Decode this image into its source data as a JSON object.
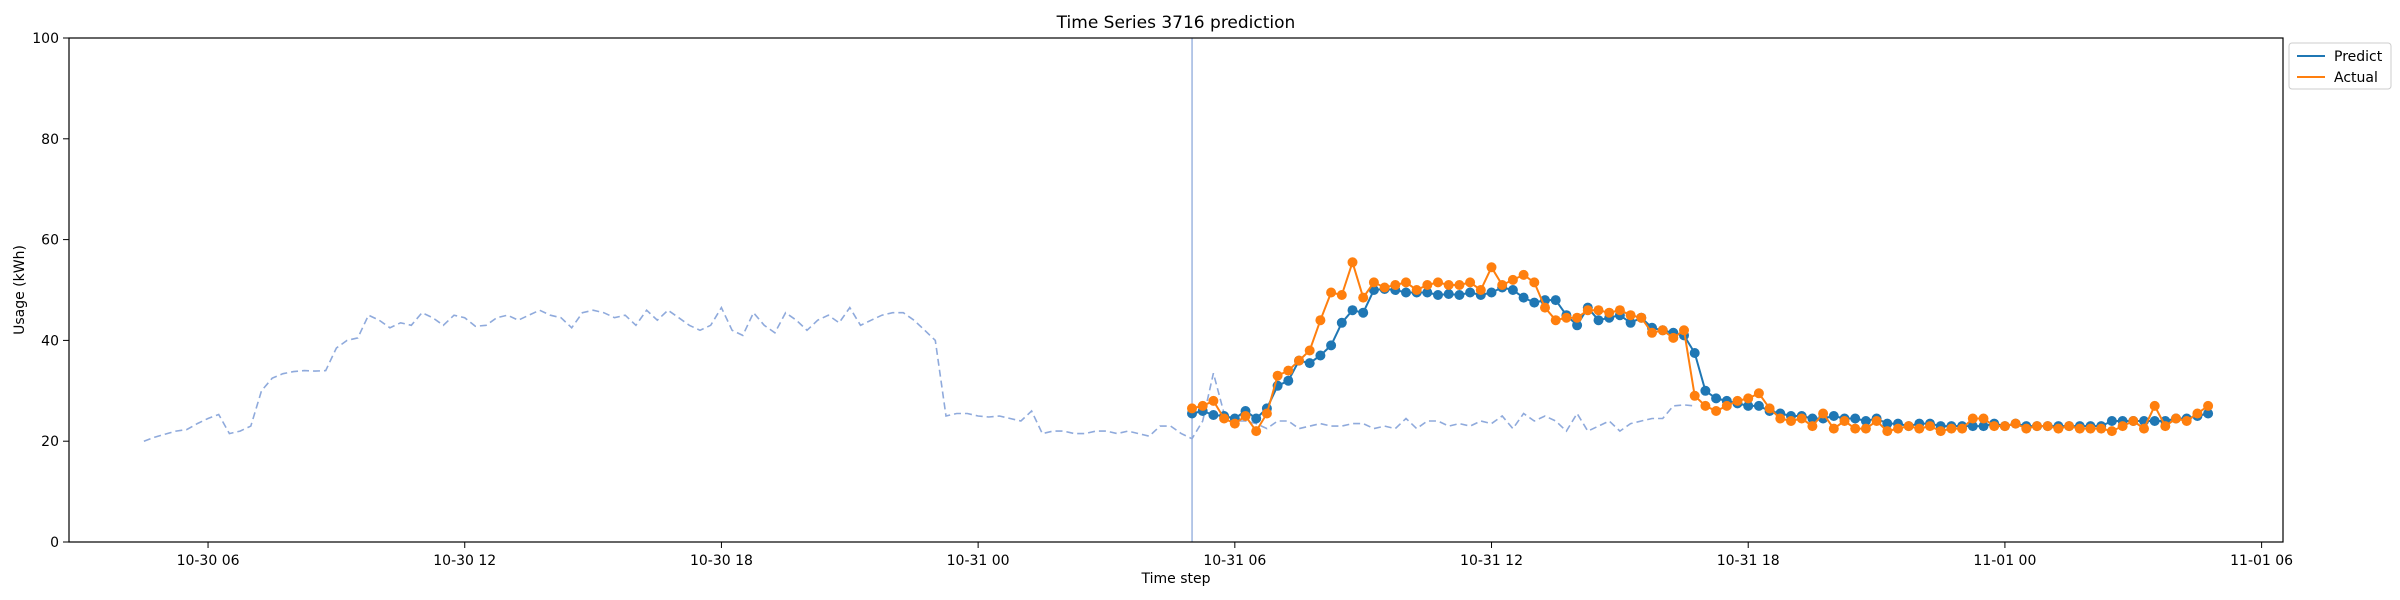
{
  "chart_data": {
    "type": "line",
    "title": "Time Series 3716 prediction",
    "xlabel": "Time step",
    "ylabel": "Usage (kWh)",
    "ylim": [
      0,
      100
    ],
    "yticks": [
      0,
      20,
      40,
      60,
      80,
      100
    ],
    "x_axis": "time",
    "x_start": "2016-10-30 04:30",
    "x_step_minutes": 15,
    "xlim": [
      "2016-10-30 02:45",
      "2016-11-01 06:30"
    ],
    "xticks": [
      {
        "t": "2016-10-30 06:00",
        "label": "10-30 06"
      },
      {
        "t": "2016-10-30 12:00",
        "label": "10-30 12"
      },
      {
        "t": "2016-10-30 18:00",
        "label": "10-30 18"
      },
      {
        "t": "2016-10-31 00:00",
        "label": "10-31 00"
      },
      {
        "t": "2016-10-31 06:00",
        "label": "10-31 06"
      },
      {
        "t": "2016-10-31 12:00",
        "label": "10-31 12"
      },
      {
        "t": "2016-10-31 18:00",
        "label": "10-31 18"
      },
      {
        "t": "2016-11-01 00:00",
        "label": "11-01 00"
      },
      {
        "t": "2016-11-01 06:00",
        "label": "11-01 06"
      }
    ],
    "forecast_start": "2016-10-31 05:00",
    "grid": false,
    "legend_position": "outside-top-right",
    "history": {
      "style": "dashed",
      "color": "#8faadc",
      "start": "2016-10-30 04:30",
      "values": [
        20.0,
        20.8,
        21.4,
        22.0,
        22.3,
        23.5,
        24.5,
        25.3,
        21.5,
        22.0,
        23.0,
        30.0,
        32.5,
        33.4,
        33.8,
        34.0,
        33.9,
        34.0,
        38.5,
        40.0,
        40.5,
        45.0,
        44.0,
        42.5,
        43.5,
        43.0,
        45.5,
        44.5,
        43.0,
        45.0,
        44.5,
        42.8,
        43.0,
        44.5,
        45.0,
        44.0,
        45.0,
        46.0,
        45.0,
        44.5,
        42.5,
        45.5,
        46.0,
        45.5,
        44.5,
        45.0,
        43.0,
        46.0,
        44.0,
        46.0,
        44.5,
        43.0,
        42.0,
        43.0,
        46.5,
        42.0,
        41.0,
        45.5,
        43.0,
        41.5,
        45.5,
        44.0,
        42.0,
        44.0,
        45.0,
        43.5,
        46.5,
        43.0,
        44.0,
        45.0,
        45.5,
        45.5,
        44.0,
        42.0,
        40.0,
        25.0,
        25.5,
        25.5,
        25.0,
        24.8,
        25.0,
        24.5,
        24.0,
        26.0,
        21.5,
        22.0,
        22.0,
        21.5,
        21.5,
        22.0,
        22.0,
        21.5,
        22.0,
        21.5,
        21.0,
        23.0,
        23.0,
        21.5,
        20.5,
        24.0,
        33.5,
        25.5,
        24.0,
        24.0,
        23.5,
        22.5,
        24.0,
        24.0,
        22.5,
        23.0,
        23.5,
        23.0,
        23.0,
        23.5,
        23.5,
        22.5,
        23.0,
        22.5,
        24.5,
        22.5,
        24.0,
        24.0,
        23.0,
        23.5,
        23.0,
        24.0,
        23.5,
        25.0,
        22.5,
        25.5,
        24.0,
        25.0,
        24.0,
        22.0,
        25.5,
        22.0,
        23.0,
        24.0,
        22.0,
        23.5,
        24.0,
        24.5,
        24.5,
        27.0,
        27.2,
        27.0
      ]
    },
    "series": [
      {
        "name": "Predict",
        "color": "#1f77b4",
        "start": "2016-10-31 05:00",
        "values": [
          25.5,
          26.0,
          25.2,
          25.0,
          24.5,
          26.0,
          24.5,
          26.5,
          31.0,
          32.0,
          36.0,
          35.5,
          37.0,
          39.0,
          43.5,
          46.0,
          45.5,
          50.0,
          50.2,
          50.0,
          49.5,
          49.5,
          49.5,
          49.0,
          49.2,
          49.0,
          49.5,
          49.0,
          49.5,
          50.5,
          50.0,
          48.5,
          47.5,
          48.0,
          48.0,
          45.0,
          43.0,
          46.5,
          44.0,
          44.5,
          45.0,
          43.5,
          44.5,
          42.5,
          42.0,
          41.5,
          41.0,
          37.5,
          30.0,
          28.5,
          28.0,
          27.5,
          27.0,
          27.0,
          26.0,
          25.5,
          25.0,
          25.0,
          24.5,
          24.5,
          25.0,
          24.5,
          24.5,
          24.0,
          24.5,
          23.5,
          23.5,
          23.0,
          23.5,
          23.5,
          23.0,
          23.0,
          23.0,
          23.0,
          23.0,
          23.5,
          23.0,
          23.5,
          23.0,
          23.0,
          23.0,
          23.0,
          23.0,
          23.0,
          23.0,
          23.0,
          24.0,
          24.0,
          24.0,
          24.0,
          24.0,
          24.0,
          24.5,
          24.5,
          25.0,
          25.5
        ]
      },
      {
        "name": "Actual",
        "color": "#ff7f0e",
        "start": "2016-10-31 05:00",
        "values": [
          26.5,
          27.0,
          28.0,
          24.5,
          23.5,
          25.0,
          22.0,
          25.5,
          33.0,
          34.0,
          36.0,
          38.0,
          44.0,
          49.5,
          49.0,
          55.5,
          48.5,
          51.5,
          50.5,
          51.0,
          51.5,
          50.0,
          51.0,
          51.5,
          51.0,
          51.0,
          51.5,
          50.0,
          54.5,
          51.0,
          52.0,
          53.0,
          51.5,
          46.5,
          44.0,
          44.5,
          44.5,
          46.0,
          46.0,
          45.5,
          46.0,
          45.0,
          44.5,
          41.5,
          42.0,
          40.5,
          42.0,
          29.0,
          27.0,
          26.0,
          27.0,
          28.0,
          28.5,
          29.5,
          26.5,
          24.5,
          24.0,
          24.5,
          23.0,
          25.5,
          22.5,
          24.0,
          22.5,
          22.5,
          24.0,
          22.0,
          22.5,
          23.0,
          22.5,
          23.0,
          22.0,
          22.5,
          22.5,
          24.5,
          24.5,
          23.0,
          23.0,
          23.5,
          22.5,
          23.0,
          23.0,
          22.5,
          23.0,
          22.5,
          22.5,
          22.5,
          22.0,
          23.0,
          24.0,
          22.5,
          27.0,
          23.0,
          24.5,
          24.0,
          25.5,
          27.0
        ]
      }
    ]
  }
}
